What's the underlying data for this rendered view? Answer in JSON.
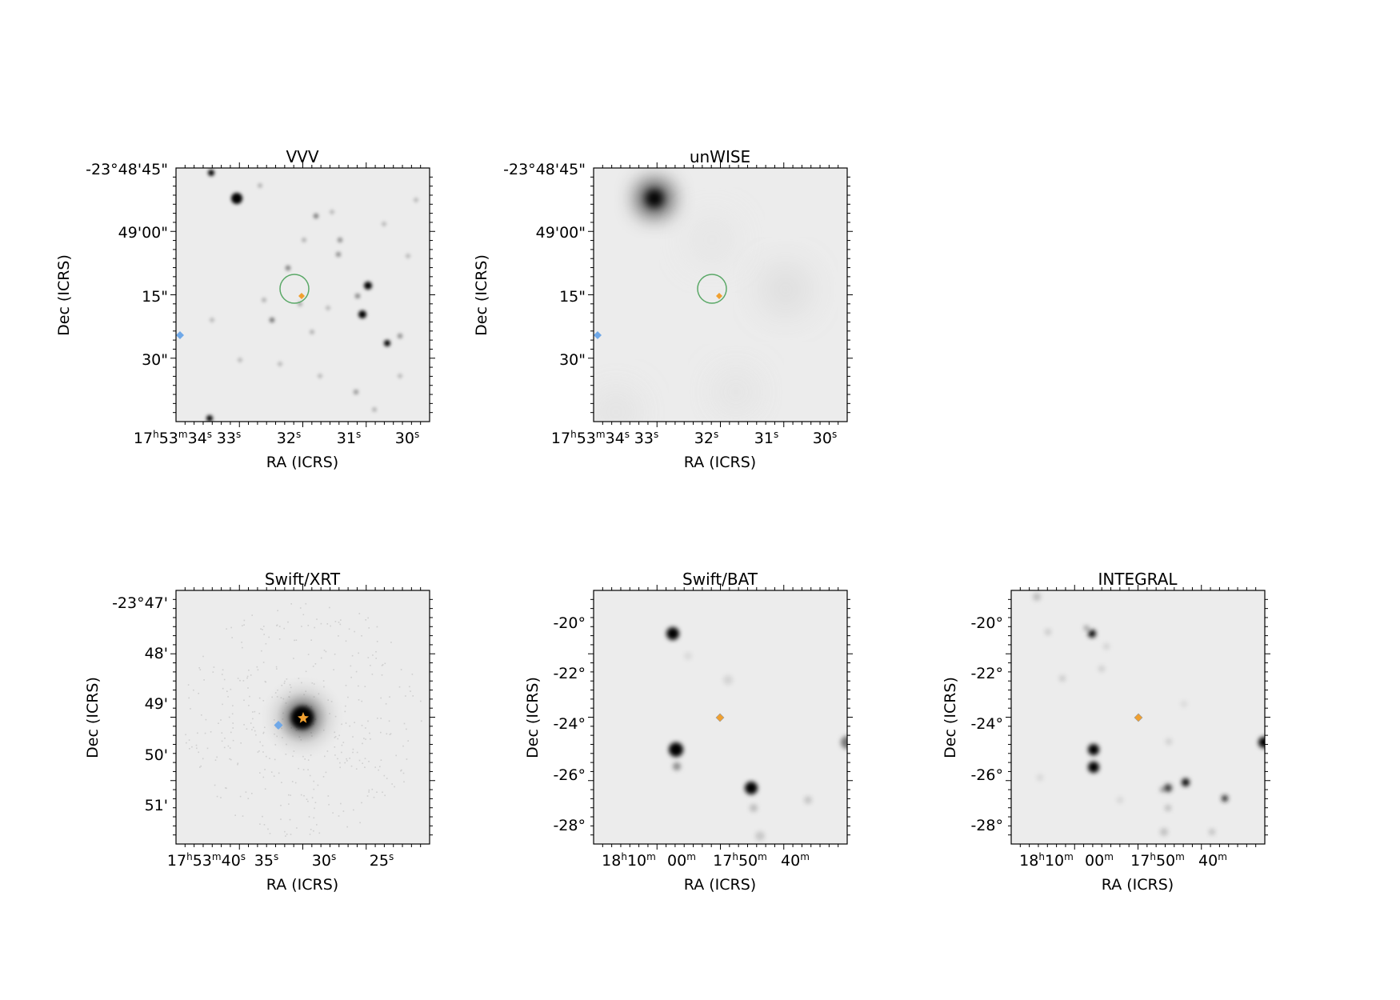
{
  "figure": {
    "panels": [
      {
        "id": "vvv",
        "title": "VVV",
        "xlabel": "RA (ICRS)",
        "ylabel": "Dec (ICRS)",
        "xticks": [
          "17h53m34s",
          "33s",
          "32s",
          "31s",
          "30s"
        ],
        "yticks": [
          "-23°48'45\"",
          "49'00\"",
          "15\"",
          "30\""
        ],
        "markers": [
          "error-circle",
          "orange-diamond",
          "blue-diamond"
        ]
      },
      {
        "id": "unwise",
        "title": "unWISE",
        "xlabel": "RA (ICRS)",
        "ylabel": "Dec (ICRS)",
        "xticks": [
          "17h53m34s",
          "33s",
          "32s",
          "31s",
          "30s"
        ],
        "yticks": [
          "-23°48'45\"",
          "49'00\"",
          "15\"",
          "30\""
        ],
        "markers": [
          "error-circle",
          "orange-diamond",
          "blue-diamond"
        ]
      },
      {
        "id": "swift-xrt",
        "title": "Swift/XRT",
        "xlabel": "RA (ICRS)",
        "ylabel": "Dec (ICRS)",
        "xticks": [
          "17h53m40s",
          "35s",
          "30s",
          "25s"
        ],
        "yticks": [
          "-23°47'",
          "48'",
          "49'",
          "50'",
          "51'"
        ],
        "markers": [
          "orange-star",
          "blue-diamond"
        ]
      },
      {
        "id": "swift-bat",
        "title": "Swift/BAT",
        "xlabel": "RA (ICRS)",
        "ylabel": "Dec (ICRS)",
        "xticks": [
          "18h10m",
          "00m",
          "17h50m",
          "40m"
        ],
        "yticks": [
          "-20°",
          "-22°",
          "-24°",
          "-26°",
          "-28°"
        ],
        "markers": [
          "orange-diamond"
        ]
      },
      {
        "id": "integral",
        "title": "INTEGRAL",
        "xlabel": "RA (ICRS)",
        "ylabel": "Dec (ICRS)",
        "xticks": [
          "18h10m",
          "00m",
          "17h50m",
          "40m"
        ],
        "yticks": [
          "-20°",
          "-22°",
          "-24°",
          "-26°",
          "-28°"
        ],
        "markers": [
          "orange-diamond"
        ]
      }
    ],
    "colors": {
      "background": "#ececec",
      "source": "#000000",
      "error_circle": "#5aa867",
      "orange_marker": "#f0a030",
      "blue_marker": "#6fa8e8"
    }
  }
}
